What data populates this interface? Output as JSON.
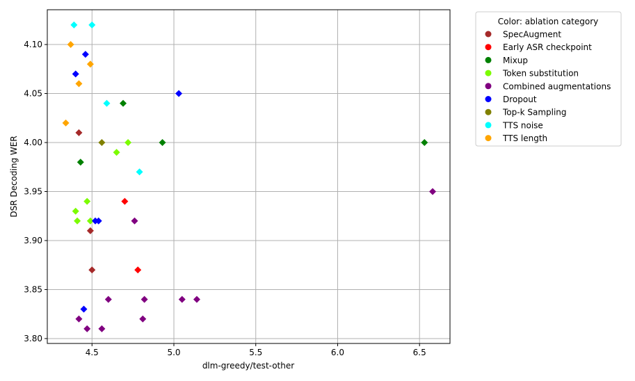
{
  "chart_data": {
    "type": "scatter",
    "title": "",
    "xlabel": "dlm-greedy/test-other",
    "ylabel": "DSR Decoding WER",
    "xlim": [
      4.227,
      6.686
    ],
    "ylim": [
      3.795,
      4.1355
    ],
    "xticks": [
      4.5,
      5.0,
      5.5,
      6.0,
      6.5
    ],
    "xtick_labels": [
      "4.5",
      "5.0",
      "5.5",
      "6.0",
      "6.5"
    ],
    "yticks": [
      3.8,
      3.85,
      3.9,
      3.95,
      4.0,
      4.05,
      4.1
    ],
    "ytick_labels": [
      "3.80",
      "3.85",
      "3.90",
      "3.95",
      "4.00",
      "4.05",
      "4.10"
    ],
    "grid": true,
    "legend_title": "Color: ablation category",
    "legend_placement": "outside-right-top",
    "series": [
      {
        "name": "SpecAugment",
        "color": "#a52a2a",
        "points": [
          [
            4.42,
            4.01
          ],
          [
            4.49,
            3.91
          ],
          [
            4.5,
            3.87
          ]
        ]
      },
      {
        "name": "Early ASR checkpoint",
        "color": "#ff0000",
        "points": [
          [
            4.7,
            3.94
          ],
          [
            4.78,
            3.87
          ]
        ]
      },
      {
        "name": "Mixup",
        "color": "#008000",
        "points": [
          [
            4.69,
            4.04
          ],
          [
            4.93,
            4.0
          ],
          [
            6.53,
            4.0
          ],
          [
            4.43,
            3.98
          ]
        ]
      },
      {
        "name": "Token substitution",
        "color": "#7cfc00",
        "points": [
          [
            4.72,
            4.0
          ],
          [
            4.65,
            3.99
          ],
          [
            4.47,
            3.94
          ],
          [
            4.4,
            3.93
          ],
          [
            4.41,
            3.92
          ],
          [
            4.49,
            3.92
          ]
        ]
      },
      {
        "name": "Combined augmentations",
        "color": "#800080",
        "points": [
          [
            6.58,
            3.95
          ],
          [
            4.76,
            3.92
          ],
          [
            4.6,
            3.84
          ],
          [
            4.82,
            3.84
          ],
          [
            5.05,
            3.84
          ],
          [
            5.14,
            3.84
          ],
          [
            4.42,
            3.82
          ],
          [
            4.81,
            3.82
          ],
          [
            4.47,
            3.81
          ],
          [
            4.56,
            3.81
          ]
        ]
      },
      {
        "name": "Dropout",
        "color": "#0000ff",
        "points": [
          [
            4.46,
            4.09
          ],
          [
            4.4,
            4.07
          ],
          [
            5.03,
            4.05
          ],
          [
            4.52,
            3.92
          ],
          [
            4.54,
            3.92
          ],
          [
            4.45,
            3.83
          ]
        ]
      },
      {
        "name": "Top-k Sampling",
        "color": "#808000",
        "points": [
          [
            4.56,
            4.0
          ]
        ]
      },
      {
        "name": "TTS noise",
        "color": "#00ffff",
        "points": [
          [
            4.39,
            4.12
          ],
          [
            4.5,
            4.12
          ],
          [
            4.59,
            4.04
          ],
          [
            4.79,
            3.97
          ]
        ]
      },
      {
        "name": "TTS length",
        "color": "#ffa500",
        "points": [
          [
            4.37,
            4.1
          ],
          [
            4.49,
            4.08
          ],
          [
            4.42,
            4.06
          ],
          [
            4.34,
            4.02
          ]
        ]
      }
    ]
  }
}
